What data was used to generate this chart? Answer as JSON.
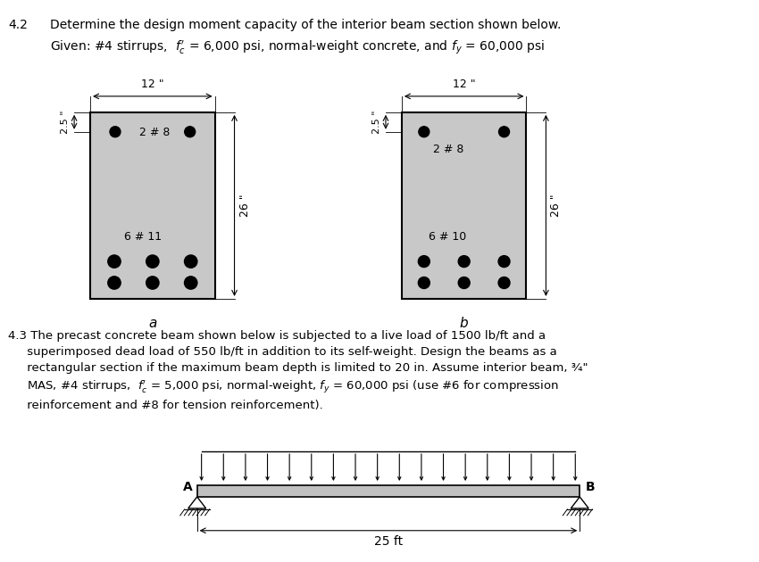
{
  "beam_fill_color": "#c8c8c8",
  "beam_line_color": "#000000",
  "dot_color": "#000000",
  "bg_color": "#ffffff",
  "beam_width_label": "12 \"",
  "beam_height_label": "26 \"",
  "beam_top_cover_label": "2.5 \"",
  "beam_a_top_bars": "2 # 8",
  "beam_a_bottom_bars": "6 # 11",
  "beam_b_top_bars": "2 # 8",
  "beam_b_bottom_bars": "6 # 10",
  "span_label": "25 ft"
}
